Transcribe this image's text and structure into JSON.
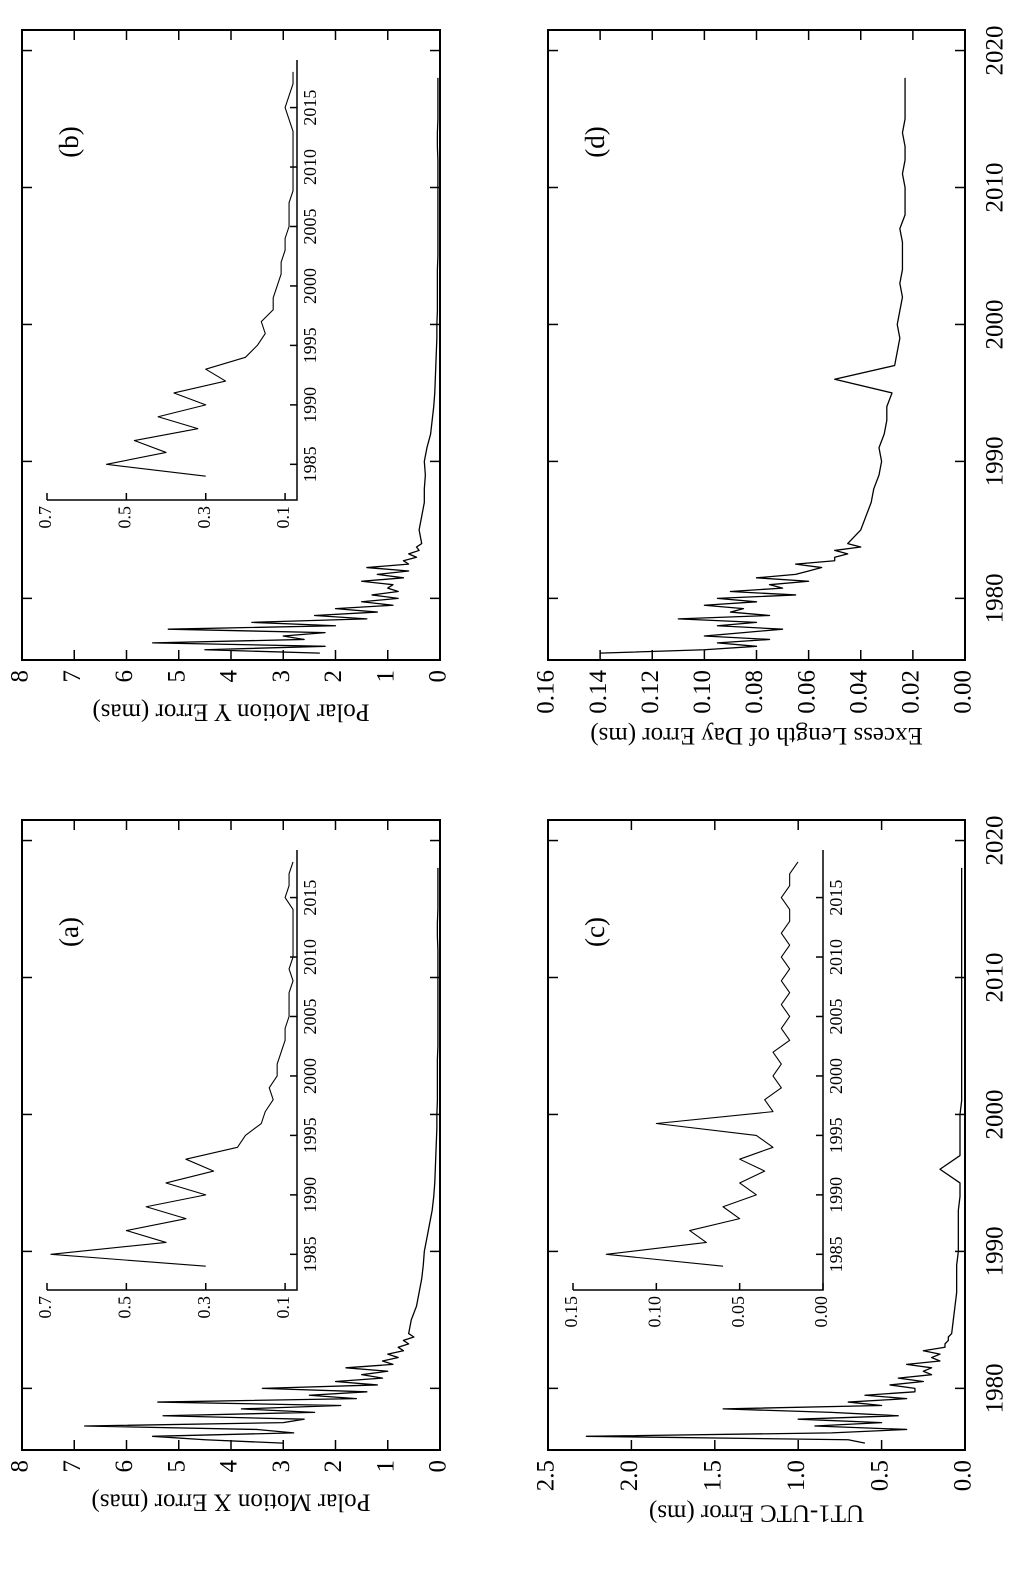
{
  "chart_data": [
    {
      "type": "line",
      "label": "(a)",
      "ylabel": "Polar Motion X Error (mas)",
      "color": "#000000",
      "x": [
        1976,
        1976.25,
        1976.5,
        1976.75,
        1977,
        1977.25,
        1977.5,
        1977.75,
        1978,
        1978.25,
        1978.5,
        1978.75,
        1979,
        1979.25,
        1979.5,
        1979.75,
        1980,
        1980.25,
        1980.5,
        1980.75,
        1981,
        1981.25,
        1981.5,
        1981.75,
        1982,
        1982.25,
        1982.5,
        1982.75,
        1983,
        1983.25,
        1983.5,
        1983.75,
        1984,
        1985,
        1986,
        1987,
        1988,
        1989,
        1990,
        1991,
        1992,
        1993,
        1994,
        1995,
        1996,
        1997,
        1998,
        1999,
        2000,
        2001,
        2002,
        2003,
        2004,
        2005,
        2006,
        2007,
        2008,
        2009,
        2010,
        2011,
        2012,
        2013,
        2014,
        2015,
        2016,
        2017,
        2018
      ],
      "values": [
        3.0,
        4.5,
        5.5,
        2.8,
        3.5,
        6.8,
        3.0,
        2.6,
        5.3,
        2.4,
        3.8,
        1.9,
        5.4,
        1.6,
        2.5,
        1.4,
        3.4,
        1.2,
        2.0,
        1.1,
        1.5,
        1.0,
        1.8,
        0.9,
        1.1,
        0.8,
        1.0,
        0.7,
        0.8,
        0.6,
        0.7,
        0.5,
        0.6,
        0.55,
        0.45,
        0.4,
        0.35,
        0.32,
        0.3,
        0.25,
        0.2,
        0.15,
        0.12,
        0.1,
        0.09,
        0.08,
        0.07,
        0.06,
        0.06,
        0.05,
        0.05,
        0.05,
        0.05,
        0.04,
        0.04,
        0.04,
        0.04,
        0.04,
        0.04,
        0.04,
        0.04,
        0.05,
        0.05,
        0.04,
        0.04,
        0.04,
        0.04
      ],
      "xlim": [
        1975.5,
        2021.5
      ],
      "ylim": [
        0,
        8
      ],
      "xticks": [
        1980,
        1990,
        2000,
        2010,
        2020
      ],
      "yticks": [
        0,
        1,
        2,
        3,
        4,
        5,
        6,
        7,
        8
      ],
      "xticklabels": false,
      "inset": {
        "x": [
          1984,
          1985,
          1986,
          1987,
          1988,
          1989,
          1990,
          1991,
          1992,
          1993,
          1994,
          1995,
          1996,
          1997,
          1998,
          1999,
          2000,
          2001,
          2002,
          2003,
          2004,
          2005,
          2006,
          2007,
          2008,
          2009,
          2010,
          2011,
          2012,
          2013,
          2014,
          2015,
          2016,
          2017,
          2018
        ],
        "values": [
          0.3,
          0.69,
          0.4,
          0.5,
          0.35,
          0.45,
          0.3,
          0.4,
          0.28,
          0.35,
          0.22,
          0.2,
          0.16,
          0.15,
          0.13,
          0.14,
          0.12,
          0.12,
          0.11,
          0.1,
          0.1,
          0.09,
          0.09,
          0.09,
          0.08,
          0.09,
          0.08,
          0.08,
          0.08,
          0.08,
          0.08,
          0.1,
          0.09,
          0.09,
          0.08
        ],
        "xlim": [
          1982,
          2019
        ],
        "ylim": [
          0.07,
          0.7
        ],
        "xticks": [
          1985,
          1990,
          1995,
          2000,
          2005,
          2010,
          2015
        ],
        "yticks": [
          0.1,
          0.3,
          0.5,
          0.7
        ]
      }
    },
    {
      "type": "line",
      "label": "(b)",
      "ylabel": "Polar Motion Y Error (mas)",
      "color": "#000000",
      "x": [
        1976,
        1976.25,
        1976.5,
        1976.75,
        1977,
        1977.25,
        1977.5,
        1977.75,
        1978,
        1978.25,
        1978.5,
        1978.75,
        1979,
        1979.25,
        1979.5,
        1979.75,
        1980,
        1980.25,
        1980.5,
        1980.75,
        1981,
        1981.25,
        1981.5,
        1981.75,
        1982,
        1982.25,
        1982.5,
        1982.75,
        1983,
        1983.25,
        1983.5,
        1983.75,
        1984,
        1985,
        1986,
        1987,
        1988,
        1989,
        1990,
        1991,
        1992,
        1993,
        1994,
        1995,
        1996,
        1997,
        1998,
        1999,
        2000,
        2001,
        2002,
        2003,
        2004,
        2005,
        2006,
        2007,
        2008,
        2009,
        2010,
        2011,
        2012,
        2013,
        2014,
        2015,
        2016,
        2017,
        2018
      ],
      "values": [
        2.3,
        4.5,
        2.2,
        5.5,
        2.6,
        3.0,
        2.2,
        5.2,
        2.0,
        3.6,
        1.4,
        2.4,
        1.2,
        2.0,
        0.9,
        1.5,
        0.8,
        1.3,
        0.8,
        1.0,
        0.9,
        1.5,
        0.7,
        1.2,
        0.6,
        1.4,
        0.6,
        0.7,
        0.45,
        0.6,
        0.4,
        0.45,
        0.35,
        0.4,
        0.35,
        0.3,
        0.3,
        0.28,
        0.3,
        0.25,
        0.18,
        0.15,
        0.12,
        0.1,
        0.09,
        0.08,
        0.07,
        0.06,
        0.06,
        0.05,
        0.05,
        0.05,
        0.05,
        0.04,
        0.04,
        0.04,
        0.04,
        0.04,
        0.04,
        0.04,
        0.04,
        0.05,
        0.05,
        0.04,
        0.04,
        0.04,
        0.04
      ],
      "xlim": [
        1975.5,
        2021.5
      ],
      "ylim": [
        0,
        8
      ],
      "xticks": [
        1980,
        1990,
        2000,
        2010,
        2020
      ],
      "yticks": [
        0,
        1,
        2,
        3,
        4,
        5,
        6,
        7,
        8
      ],
      "xticklabels": false,
      "inset": {
        "x": [
          1984,
          1985,
          1986,
          1987,
          1988,
          1989,
          1990,
          1991,
          1992,
          1993,
          1994,
          1995,
          1996,
          1997,
          1998,
          1999,
          2000,
          2001,
          2002,
          2003,
          2004,
          2005,
          2006,
          2007,
          2008,
          2009,
          2010,
          2011,
          2012,
          2013,
          2014,
          2015,
          2016,
          2017,
          2018
        ],
        "values": [
          0.3,
          0.55,
          0.4,
          0.48,
          0.32,
          0.42,
          0.3,
          0.38,
          0.25,
          0.3,
          0.2,
          0.17,
          0.15,
          0.16,
          0.13,
          0.13,
          0.12,
          0.11,
          0.11,
          0.1,
          0.1,
          0.09,
          0.09,
          0.09,
          0.08,
          0.08,
          0.08,
          0.08,
          0.08,
          0.08,
          0.09,
          0.1,
          0.09,
          0.08,
          0.08
        ],
        "xlim": [
          1982,
          2019
        ],
        "ylim": [
          0.07,
          0.7
        ],
        "xticks": [
          1985,
          1990,
          1995,
          2000,
          2005,
          2010,
          2015
        ],
        "yticks": [
          0.1,
          0.3,
          0.5,
          0.7
        ]
      }
    },
    {
      "type": "line",
      "label": "(c)",
      "ylabel": "UT1-UTC Error (ms)",
      "color": "#000000",
      "x": [
        1976,
        1976.25,
        1976.5,
        1976.75,
        1977,
        1977.25,
        1977.5,
        1977.75,
        1978,
        1978.25,
        1978.5,
        1978.75,
        1979,
        1979.25,
        1979.5,
        1979.75,
        1980,
        1980.25,
        1980.5,
        1980.75,
        1981,
        1981.25,
        1981.5,
        1981.75,
        1982,
        1982.25,
        1982.5,
        1982.75,
        1983,
        1983.25,
        1983.5,
        1983.75,
        1984,
        1985,
        1986,
        1987,
        1988,
        1989,
        1990,
        1991,
        1992,
        1993,
        1994,
        1995,
        1996,
        1997,
        1998,
        1999,
        2000,
        2001,
        2002,
        2003,
        2004,
        2005,
        2006,
        2007,
        2008,
        2009,
        2010,
        2011,
        2012,
        2013,
        2014,
        2015,
        2016,
        2017,
        2018
      ],
      "values": [
        0.6,
        0.7,
        2.27,
        0.8,
        0.35,
        0.9,
        0.5,
        1.0,
        0.4,
        0.8,
        1.45,
        0.5,
        0.7,
        0.35,
        0.6,
        0.3,
        0.3,
        0.45,
        0.25,
        0.4,
        0.2,
        0.25,
        0.2,
        0.35,
        0.15,
        0.2,
        0.15,
        0.25,
        0.12,
        0.12,
        0.1,
        0.1,
        0.08,
        0.07,
        0.06,
        0.05,
        0.05,
        0.05,
        0.04,
        0.04,
        0.04,
        0.04,
        0.03,
        0.03,
        0.15,
        0.03,
        0.03,
        0.03,
        0.03,
        0.02,
        0.02,
        0.02,
        0.02,
        0.02,
        0.02,
        0.02,
        0.02,
        0.02,
        0.02,
        0.02,
        0.02,
        0.02,
        0.02,
        0.02,
        0.02,
        0.02,
        0.02
      ],
      "xlim": [
        1975.5,
        2021.5
      ],
      "ylim": [
        0,
        2.5
      ],
      "xticks": [
        1980,
        1990,
        2000,
        2010,
        2020
      ],
      "yticks": [
        {
          "value": 0,
          "label": "0.0"
        },
        0.5,
        {
          "value": 1,
          "label": "1.0"
        },
        1.5,
        {
          "value": 2,
          "label": "2.0"
        },
        2.5
      ],
      "xticklabels": true,
      "inset": {
        "x": [
          1984,
          1985,
          1986,
          1987,
          1988,
          1989,
          1990,
          1991,
          1992,
          1993,
          1994,
          1995,
          1996,
          1997,
          1998,
          1999,
          2000,
          2001,
          2002,
          2003,
          2004,
          2005,
          2006,
          2007,
          2008,
          2009,
          2010,
          2011,
          2012,
          2013,
          2014,
          2015,
          2016,
          2017,
          2018
        ],
        "values": [
          0.06,
          0.13,
          0.07,
          0.08,
          0.05,
          0.06,
          0.04,
          0.05,
          0.035,
          0.05,
          0.03,
          0.04,
          0.1,
          0.03,
          0.035,
          0.025,
          0.03,
          0.025,
          0.03,
          0.02,
          0.025,
          0.02,
          0.025,
          0.02,
          0.025,
          0.02,
          0.025,
          0.02,
          0.025,
          0.02,
          0.02,
          0.025,
          0.02,
          0.02,
          0.015
        ],
        "xlim": [
          1982,
          2019
        ],
        "ylim": [
          0,
          0.15
        ],
        "xticks": [
          1985,
          1990,
          1995,
          2000,
          2005,
          2010,
          2015
        ],
        "yticks": [
          {
            "value": 0,
            "label": "0.00"
          },
          0.05,
          {
            "value": 0.1,
            "label": "0.10"
          },
          0.15
        ]
      }
    },
    {
      "type": "line",
      "label": "(d)",
      "ylabel": "Excess Length of Day Error (ms)",
      "color": "#000000",
      "x": [
        1976,
        1976.25,
        1976.5,
        1976.75,
        1977,
        1977.25,
        1977.5,
        1977.75,
        1978,
        1978.25,
        1978.5,
        1978.75,
        1979,
        1979.25,
        1979.5,
        1979.75,
        1980,
        1980.25,
        1980.5,
        1980.75,
        1981,
        1981.25,
        1981.5,
        1981.75,
        1982,
        1982.25,
        1982.5,
        1982.75,
        1983,
        1983.25,
        1983.5,
        1983.75,
        1984,
        1985,
        1986,
        1987,
        1988,
        1989,
        1990,
        1991,
        1992,
        1993,
        1994,
        1995,
        1996,
        1997,
        1998,
        1999,
        2000,
        2001,
        2002,
        2003,
        2004,
        2005,
        2006,
        2007,
        2008,
        2009,
        2010,
        2011,
        2012,
        2013,
        2014,
        2015,
        2016,
        2017,
        2018
      ],
      "values": [
        0.14,
        0.1,
        0.08,
        0.095,
        0.075,
        0.1,
        0.085,
        0.07,
        0.095,
        0.08,
        0.11,
        0.075,
        0.09,
        0.085,
        0.1,
        0.08,
        0.095,
        0.065,
        0.09,
        0.07,
        0.075,
        0.06,
        0.08,
        0.065,
        0.06,
        0.055,
        0.065,
        0.05,
        0.05,
        0.045,
        0.05,
        0.04,
        0.045,
        0.04,
        0.038,
        0.036,
        0.035,
        0.033,
        0.032,
        0.033,
        0.031,
        0.03,
        0.03,
        0.028,
        0.05,
        0.027,
        0.026,
        0.025,
        0.026,
        0.025,
        0.024,
        0.025,
        0.024,
        0.024,
        0.024,
        0.025,
        0.023,
        0.023,
        0.023,
        0.024,
        0.023,
        0.023,
        0.024,
        0.023,
        0.023,
        0.023,
        0.023
      ],
      "xlim": [
        1975.5,
        2021.5
      ],
      "ylim": [
        0,
        0.16
      ],
      "xticks": [
        1980,
        1990,
        2000,
        2010,
        2020
      ],
      "yticks": [
        {
          "value": 0,
          "label": "0.00"
        },
        0.02,
        0.04,
        0.06,
        0.08,
        {
          "value": 0.1,
          "label": "0.10"
        },
        0.12,
        0.14,
        0.16
      ],
      "xticklabels": true
    }
  ]
}
